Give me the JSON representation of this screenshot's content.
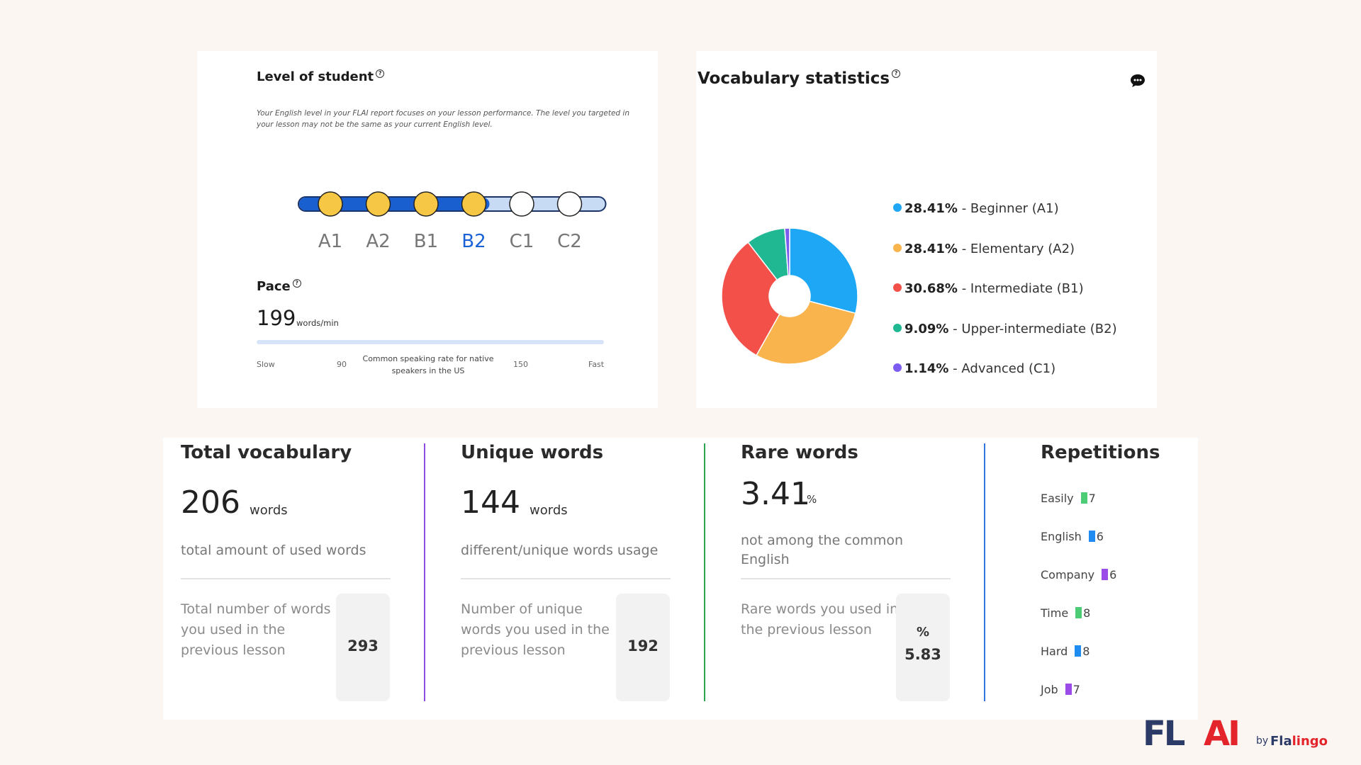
{
  "level": {
    "title": "Level of student",
    "help": "?",
    "description": "Your English level in your FLAI report focuses on your lesson performance. The level you targeted in your lesson may not be the same as your current English level.",
    "levels": [
      "A1",
      "A2",
      "B1",
      "B2",
      "C1",
      "C2"
    ],
    "achieved_count": 4,
    "current_level": "B2",
    "colors": {
      "track_filled": "#1a5fd0",
      "track_empty": "#c7dbf5",
      "dot_filled": "#f6c744",
      "active_label": "#1a63d6"
    }
  },
  "pace": {
    "title": "Pace",
    "help": "?",
    "value": "199",
    "unit": "words/min",
    "slow_label": "Slow",
    "low_mark": "90",
    "common_label": "Common speaking rate for native speakers in the US",
    "high_mark": "150",
    "fast_label": "Fast"
  },
  "vocab_stats": {
    "title": "Vocabulary statistics",
    "help": "?",
    "icon": "chat-bubble-icon",
    "legend": [
      {
        "pct": "28.41%",
        "label": "- Beginner (A1)",
        "color": "#1ea7f5"
      },
      {
        "pct": "28.41%",
        "label": "- Elementary (A2)",
        "color": "#f9b44d"
      },
      {
        "pct": "30.68%",
        "label": "- Intermediate (B1)",
        "color": "#f4504a"
      },
      {
        "pct": "9.09%",
        "label": "- Upper-intermediate (B2)",
        "color": "#1fb893"
      },
      {
        "pct": "1.14%",
        "label": "- Advanced (C1)",
        "color": "#7c5cf0"
      }
    ]
  },
  "chart_data": {
    "type": "pie",
    "categories": [
      "Beginner (A1)",
      "Elementary (A2)",
      "Intermediate (B1)",
      "Upper-intermediate (B2)",
      "Advanced (C1)"
    ],
    "values": [
      28.41,
      28.41,
      30.68,
      9.09,
      1.14
    ],
    "colors": [
      "#1ea7f5",
      "#f9b44d",
      "#f4504a",
      "#1fb893",
      "#7c5cf0"
    ],
    "title": "Vocabulary statistics",
    "donut": true,
    "legend_position": "right"
  },
  "stats": {
    "total": {
      "title": "Total vocabulary",
      "value": "206",
      "unit": "words",
      "subtitle": "total amount of used words",
      "prev_line1": "Total number of words",
      "prev_line2": "you used in the",
      "prev_line3": "previous lesson",
      "prev_value": "293",
      "divider_color": "#8e4fe0"
    },
    "unique": {
      "title": "Unique words",
      "value": "144",
      "unit": "words",
      "subtitle": "different/unique words usage",
      "prev_line1": "Number of unique",
      "prev_line2": "words you used in the",
      "prev_line3": "previous lesson",
      "prev_value": "192",
      "divider_color": "#2ba54e"
    },
    "rare": {
      "title": "Rare words",
      "value": "3.41",
      "unit": "%",
      "subtitle_line1": "not among the common",
      "subtitle_line2": "English",
      "prev_line1": "Rare words you used in",
      "prev_line2": "the previous lesson",
      "prev_unit": "%",
      "prev_value": "5.83",
      "divider_color": "#2f78e0"
    },
    "repetitions": {
      "title": "Repetitions",
      "items": [
        {
          "word": "Easily",
          "count": "7",
          "color": "#4ccc74"
        },
        {
          "word": "English",
          "count": "6",
          "color": "#1e8cf0"
        },
        {
          "word": "Company",
          "count": "6",
          "color": "#9b4be8"
        },
        {
          "word": "Time",
          "count": "8",
          "color": "#4ccc74"
        },
        {
          "word": "Hard",
          "count": "8",
          "color": "#1e8cf0"
        },
        {
          "word": "Job",
          "count": "7",
          "color": "#9b4be8"
        }
      ]
    }
  },
  "logo": {
    "fl": "FL",
    "ai": "AI",
    "by": "by",
    "brand_main": "Fla",
    "brand_accent": "lingo"
  }
}
